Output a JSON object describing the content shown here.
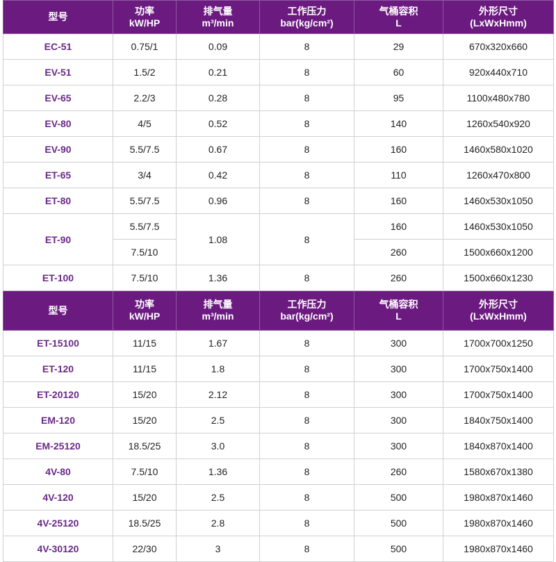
{
  "header": [
    "型号",
    "功率\nkW/HP",
    "排气量\nm³/min",
    "工作压力\nbar(kg/cm²)",
    "气桶容积\nL",
    "外形尺寸\n(LxWxHmm)"
  ],
  "colors": {
    "header_bg": "#6b1a80",
    "model_text": "#6a2888"
  },
  "tables": [
    {
      "rows": [
        {
          "model": "EC-51",
          "power": "0.75/1",
          "flow": "0.09",
          "pressure": "8",
          "tank": "29",
          "dims": "670x320x660"
        },
        {
          "model": "EV-51",
          "power": "1.5/2",
          "flow": "0.21",
          "pressure": "8",
          "tank": "60",
          "dims": "920x440x710"
        },
        {
          "model": "EV-65",
          "power": "2.2/3",
          "flow": "0.28",
          "pressure": "8",
          "tank": "95",
          "dims": "1100x480x780"
        },
        {
          "model": "EV-80",
          "power": "4/5",
          "flow": "0.52",
          "pressure": "8",
          "tank": "140",
          "dims": "1260x540x920"
        },
        {
          "model": "EV-90",
          "power": "5.5/7.5",
          "flow": "0.67",
          "pressure": "8",
          "tank": "160",
          "dims": "1460x580x1020"
        },
        {
          "model": "ET-65",
          "power": "3/4",
          "flow": "0.42",
          "pressure": "8",
          "tank": "110",
          "dims": "1260x470x800"
        },
        {
          "model": "ET-80",
          "power": "5.5/7.5",
          "flow": "0.96",
          "pressure": "8",
          "tank": "160",
          "dims": "1460x530x1050"
        },
        {
          "model": "ET-90",
          "flow": "1.08",
          "pressure": "8",
          "variants": [
            {
              "power": "5.5/7.5",
              "tank": "160",
              "dims": "1460x530x1050"
            },
            {
              "power": "7.5/10",
              "tank": "260",
              "dims": "1500x660x1200"
            }
          ]
        },
        {
          "model": "ET-100",
          "power": "7.5/10",
          "flow": "1.36",
          "pressure": "8",
          "tank": "260",
          "dims": "1500x660x1230"
        }
      ]
    },
    {
      "rows": [
        {
          "model": "ET-15100",
          "power": "11/15",
          "flow": "1.67",
          "pressure": "8",
          "tank": "300",
          "dims": "1700x700x1250"
        },
        {
          "model": "ET-120",
          "power": "11/15",
          "flow": "1.8",
          "pressure": "8",
          "tank": "300",
          "dims": "1700x750x1400"
        },
        {
          "model": "ET-20120",
          "power": "15/20",
          "flow": "2.12",
          "pressure": "8",
          "tank": "300",
          "dims": "1700x750x1400"
        },
        {
          "model": "EM-120",
          "power": "15/20",
          "flow": "2.5",
          "pressure": "8",
          "tank": "300",
          "dims": "1840x750x1400"
        },
        {
          "model": "EM-25120",
          "power": "18.5/25",
          "flow": "3.0",
          "pressure": "8",
          "tank": "300",
          "dims": "1840x870x1400"
        },
        {
          "model": "4V-80",
          "power": "7.5/10",
          "flow": "1.36",
          "pressure": "8",
          "tank": "260",
          "dims": "1580x670x1380"
        },
        {
          "model": "4V-120",
          "power": "15/20",
          "flow": "2.5",
          "pressure": "8",
          "tank": "500",
          "dims": "1980x870x1460"
        },
        {
          "model": "4V-25120",
          "power": "18.5/25",
          "flow": "2.8",
          "pressure": "8",
          "tank": "500",
          "dims": "1980x870x1460"
        },
        {
          "model": "4V-30120",
          "power": "22/30",
          "flow": "3",
          "pressure": "8",
          "tank": "500",
          "dims": "1980x870x1460"
        }
      ]
    }
  ]
}
